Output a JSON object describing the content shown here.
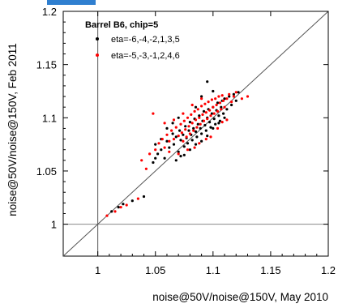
{
  "chart_data": {
    "type": "scatter",
    "xlabel": "noise@50V/noise@150V, May 2010",
    "ylabel": "noise@50V/noise@150V, Feb 2011",
    "xlim": [
      0.97,
      1.2
    ],
    "ylim": [
      0.97,
      1.2
    ],
    "xticks": [
      "1",
      "1.05",
      "1.1",
      "1.15",
      "1.2"
    ],
    "yticks": [
      "1",
      "1.05",
      "1.1",
      "1.15",
      "1.2"
    ],
    "xtick_values": [
      1.0,
      1.05,
      1.1,
      1.15,
      1.2
    ],
    "ytick_values": [
      1.0,
      1.05,
      1.1,
      1.15,
      1.2
    ],
    "grid": false,
    "reference_lines": {
      "diagonal": "y = x",
      "vertical_x": 1.0,
      "horizontal_y": 1.0
    },
    "legend": {
      "title": "Barrel B6, chip=5",
      "placement": "top-left",
      "entries": [
        {
          "label": "eta=-6,-4,-2,1,3,5",
          "color": "#000000"
        },
        {
          "label": "eta=-5,-3,-1,2,4,6",
          "color": "#ff0000"
        }
      ]
    },
    "series": [
      {
        "name": "eta=-6,-4,-2,1,3,5",
        "color": "#000000",
        "points": [
          [
            1.012,
            1.012
          ],
          [
            1.018,
            1.016
          ],
          [
            1.022,
            1.019
          ],
          [
            1.03,
            1.022
          ],
          [
            1.04,
            1.026
          ],
          [
            1.048,
            1.058
          ],
          [
            1.05,
            1.062
          ],
          [
            1.052,
            1.066
          ],
          [
            1.055,
            1.07
          ],
          [
            1.058,
            1.062
          ],
          [
            1.06,
            1.078
          ],
          [
            1.062,
            1.072
          ],
          [
            1.065,
            1.085
          ],
          [
            1.066,
            1.075
          ],
          [
            1.068,
            1.082
          ],
          [
            1.07,
            1.068
          ],
          [
            1.071,
            1.088
          ],
          [
            1.072,
            1.079
          ],
          [
            1.074,
            1.084
          ],
          [
            1.075,
            1.073
          ],
          [
            1.076,
            1.092
          ],
          [
            1.077,
            1.081
          ],
          [
            1.078,
            1.076
          ],
          [
            1.079,
            1.088
          ],
          [
            1.08,
            1.096
          ],
          [
            1.081,
            1.084
          ],
          [
            1.082,
            1.079
          ],
          [
            1.083,
            1.09
          ],
          [
            1.084,
            1.099
          ],
          [
            1.085,
            1.087
          ],
          [
            1.086,
            1.082
          ],
          [
            1.087,
            1.094
          ],
          [
            1.088,
            1.102
          ],
          [
            1.089,
            1.09
          ],
          [
            1.09,
            1.085
          ],
          [
            1.091,
            1.097
          ],
          [
            1.092,
            1.106
          ],
          [
            1.093,
            1.093
          ],
          [
            1.094,
            1.088
          ],
          [
            1.095,
            1.1
          ],
          [
            1.096,
            1.108
          ],
          [
            1.097,
            1.096
          ],
          [
            1.098,
            1.091
          ],
          [
            1.099,
            1.104
          ],
          [
            1.1,
            1.11
          ],
          [
            1.101,
            1.099
          ],
          [
            1.102,
            1.094
          ],
          [
            1.103,
            1.107
          ],
          [
            1.104,
            1.114
          ],
          [
            1.105,
            1.102
          ],
          [
            1.106,
            1.097
          ],
          [
            1.107,
            1.11
          ],
          [
            1.108,
            1.116
          ],
          [
            1.109,
            1.104
          ],
          [
            1.11,
            1.118
          ],
          [
            1.112,
            1.108
          ],
          [
            1.114,
            1.12
          ],
          [
            1.116,
            1.112
          ],
          [
            1.118,
            1.122
          ],
          [
            1.12,
            1.116
          ],
          [
            1.122,
            1.124
          ],
          [
            1.095,
            1.134
          ],
          [
            1.1,
            1.125
          ],
          [
            1.085,
            1.11
          ],
          [
            1.09,
            1.12
          ],
          [
            1.06,
            1.09
          ],
          [
            1.065,
            1.095
          ],
          [
            1.07,
            1.1
          ],
          [
            1.055,
            1.08
          ],
          [
            1.05,
            1.075
          ],
          [
            1.075,
            1.065
          ],
          [
            1.08,
            1.07
          ],
          [
            1.085,
            1.075
          ],
          [
            1.09,
            1.078
          ],
          [
            1.095,
            1.083
          ],
          [
            1.1,
            1.09
          ],
          [
            1.105,
            1.095
          ],
          [
            1.11,
            1.1
          ],
          [
            1.068,
            1.06
          ],
          [
            1.072,
            1.064
          ]
        ]
      },
      {
        "name": "eta=-5,-3,-1,2,4,6",
        "color": "#ff0000",
        "points": [
          [
            1.008,
            1.008
          ],
          [
            1.015,
            1.012
          ],
          [
            1.02,
            1.016
          ],
          [
            1.025,
            1.018
          ],
          [
            1.035,
            1.024
          ],
          [
            1.038,
            1.06
          ],
          [
            1.042,
            1.052
          ],
          [
            1.045,
            1.066
          ],
          [
            1.048,
            1.104
          ],
          [
            1.05,
            1.07
          ],
          [
            1.053,
            1.076
          ],
          [
            1.056,
            1.08
          ],
          [
            1.058,
            1.072
          ],
          [
            1.06,
            1.084
          ],
          [
            1.062,
            1.078
          ],
          [
            1.064,
            1.088
          ],
          [
            1.066,
            1.08
          ],
          [
            1.068,
            1.091
          ],
          [
            1.07,
            1.083
          ],
          [
            1.072,
            1.094
          ],
          [
            1.073,
            1.086
          ],
          [
            1.074,
            1.078
          ],
          [
            1.075,
            1.097
          ],
          [
            1.076,
            1.089
          ],
          [
            1.077,
            1.082
          ],
          [
            1.078,
            1.1
          ],
          [
            1.079,
            1.092
          ],
          [
            1.08,
            1.085
          ],
          [
            1.081,
            1.103
          ],
          [
            1.082,
            1.095
          ],
          [
            1.083,
            1.088
          ],
          [
            1.084,
            1.106
          ],
          [
            1.085,
            1.098
          ],
          [
            1.086,
            1.091
          ],
          [
            1.087,
            1.108
          ],
          [
            1.088,
            1.1
          ],
          [
            1.089,
            1.094
          ],
          [
            1.09,
            1.111
          ],
          [
            1.091,
            1.103
          ],
          [
            1.092,
            1.097
          ],
          [
            1.093,
            1.113
          ],
          [
            1.094,
            1.105
          ],
          [
            1.095,
            1.099
          ],
          [
            1.096,
            1.115
          ],
          [
            1.097,
            1.107
          ],
          [
            1.098,
            1.102
          ],
          [
            1.099,
            1.117
          ],
          [
            1.1,
            1.11
          ],
          [
            1.101,
            1.104
          ],
          [
            1.102,
            1.118
          ],
          [
            1.103,
            1.112
          ],
          [
            1.104,
            1.106
          ],
          [
            1.105,
            1.12
          ],
          [
            1.106,
            1.114
          ],
          [
            1.107,
            1.108
          ],
          [
            1.108,
            1.121
          ],
          [
            1.109,
            1.116
          ],
          [
            1.11,
            1.11
          ],
          [
            1.112,
            1.118
          ],
          [
            1.114,
            1.122
          ],
          [
            1.116,
            1.115
          ],
          [
            1.118,
            1.12
          ],
          [
            1.12,
            1.124
          ],
          [
            1.125,
            1.118
          ],
          [
            1.13,
            1.12
          ],
          [
            1.07,
            1.066
          ],
          [
            1.078,
            1.07
          ],
          [
            1.088,
            1.076
          ],
          [
            1.098,
            1.082
          ],
          [
            1.108,
            1.096
          ],
          [
            1.062,
            1.068
          ],
          [
            1.084,
            1.072
          ],
          [
            1.094,
            1.08
          ],
          [
            1.104,
            1.09
          ],
          [
            1.112,
            1.098
          ],
          [
            1.058,
            1.095
          ],
          [
            1.066,
            1.098
          ],
          [
            1.074,
            1.104
          ],
          [
            1.082,
            1.112
          ],
          [
            1.09,
            1.118
          ]
        ]
      }
    ]
  }
}
